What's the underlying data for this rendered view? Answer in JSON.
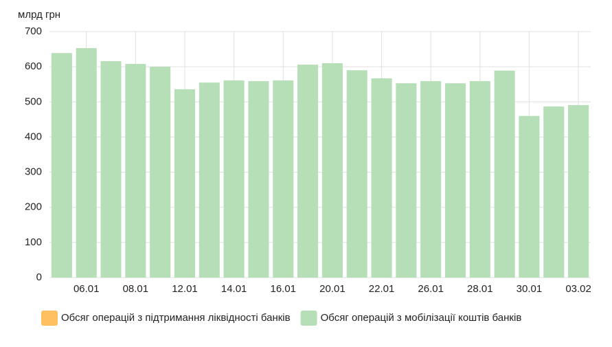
{
  "chart_data": {
    "type": "bar",
    "y_label": "млрд грн",
    "categories": [
      null,
      "06.01",
      null,
      "08.01",
      null,
      "12.01",
      null,
      "14.01",
      null,
      "16.01",
      null,
      "20.01",
      null,
      "22.01",
      null,
      "26.01",
      null,
      "28.01",
      null,
      "30.01",
      null,
      "03.02"
    ],
    "series": [
      {
        "name": "Обсяг операцій з підтримання ліквідності банків",
        "color": "#ffc060",
        "values": [
          null,
          null,
          null,
          null,
          null,
          null,
          null,
          null,
          null,
          null,
          null,
          null,
          null,
          null,
          null,
          null,
          null,
          null,
          null,
          null,
          null,
          null
        ]
      },
      {
        "name": "Обсяг операцій з мобілізації коштів банків",
        "color": "#b6dfb8",
        "values": [
          639,
          653,
          616,
          608,
          600,
          536,
          555,
          561,
          559,
          561,
          606,
          610,
          590,
          567,
          553,
          559,
          553,
          559,
          589,
          460,
          487,
          491
        ]
      }
    ],
    "ylim": [
      0,
      700
    ],
    "yticks": [
      0,
      100,
      200,
      300,
      400,
      500,
      600,
      700
    ],
    "grid": true
  }
}
